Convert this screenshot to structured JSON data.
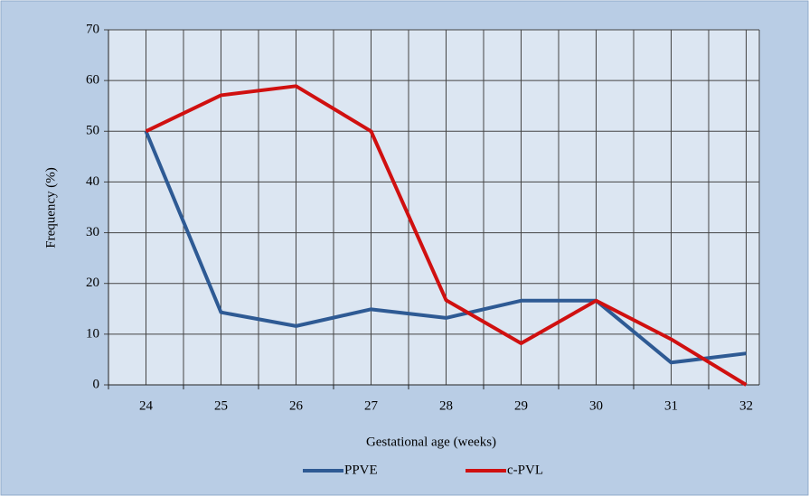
{
  "chart_data": {
    "type": "line",
    "categories": [
      "24",
      "25",
      "26",
      "27",
      "28",
      "29",
      "30",
      "31",
      "32"
    ],
    "series": [
      {
        "name": "PPVE",
        "color": "#2e5a94",
        "values": [
          50,
          14.3,
          11.6,
          14.9,
          13.2,
          16.6,
          16.6,
          4.4,
          6.2
        ]
      },
      {
        "name": "c-PVL",
        "color": "#d01010",
        "values": [
          50,
          57.1,
          58.9,
          50,
          16.7,
          8.2,
          16.6,
          9.0,
          0
        ]
      }
    ],
    "ylim": [
      0,
      70
    ],
    "yticks": [
      0,
      10,
      20,
      30,
      40,
      50,
      60,
      70
    ],
    "xlabel": "Gestational age (weeks)",
    "ylabel": "Frequency (%)",
    "grid": true,
    "legend": "bottom"
  }
}
